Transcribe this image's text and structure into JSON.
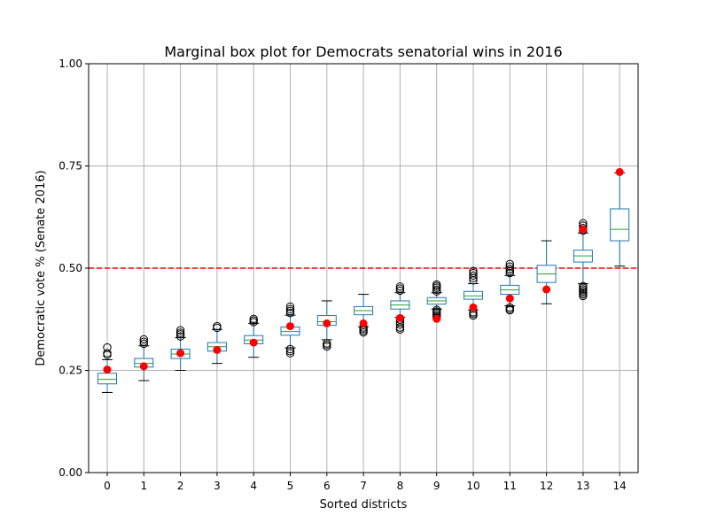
{
  "chart_data": {
    "type": "box",
    "title": "Marginal box plot for Democrats senatorial wins in 2016",
    "xlabel": "Sorted districts",
    "ylabel": "Democratic vote % (Senate 2016)",
    "ylim": [
      0,
      1
    ],
    "yticks": [
      0.0,
      0.25,
      0.5,
      0.75,
      1.0
    ],
    "ytick_labels": [
      "0.00",
      "0.25",
      "0.50",
      "0.75",
      "1.00"
    ],
    "categories": [
      "0",
      "1",
      "2",
      "3",
      "4",
      "5",
      "6",
      "7",
      "8",
      "9",
      "10",
      "11",
      "12",
      "13",
      "14"
    ],
    "grid": true,
    "reference_line": {
      "y": 0.5,
      "color": "#ff0000",
      "style": "dashed"
    },
    "colors": {
      "box": "#1f77b4",
      "median": "#2ca02c",
      "observed": "#ff0000",
      "grid": "#b0b0b0"
    },
    "boxes": [
      {
        "q1": 0.217,
        "median": 0.228,
        "q3": 0.243,
        "whisker_low": 0.196,
        "whisker_high": 0.276,
        "outliers": [
          0.288,
          0.292,
          0.306
        ]
      },
      {
        "q1": 0.258,
        "median": 0.267,
        "q3": 0.279,
        "whisker_low": 0.225,
        "whisker_high": 0.31,
        "outliers": [
          0.315,
          0.32,
          0.326
        ]
      },
      {
        "q1": 0.279,
        "median": 0.29,
        "q3": 0.302,
        "whisker_low": 0.25,
        "whisker_high": 0.33,
        "outliers": [
          0.333,
          0.338,
          0.342,
          0.348
        ]
      },
      {
        "q1": 0.297,
        "median": 0.308,
        "q3": 0.318,
        "whisker_low": 0.267,
        "whisker_high": 0.35,
        "outliers": [
          0.354,
          0.358
        ]
      },
      {
        "q1": 0.315,
        "median": 0.324,
        "q3": 0.335,
        "whisker_low": 0.282,
        "whisker_high": 0.365,
        "outliers": [
          0.368,
          0.372,
          0.376
        ]
      },
      {
        "q1": 0.336,
        "median": 0.345,
        "q3": 0.356,
        "whisker_low": 0.305,
        "whisker_high": 0.385,
        "outliers": [
          0.292,
          0.297,
          0.302,
          0.39,
          0.395,
          0.4,
          0.406
        ]
      },
      {
        "q1": 0.36,
        "median": 0.369,
        "q3": 0.384,
        "whisker_low": 0.325,
        "whisker_high": 0.42,
        "outliers": [
          0.308,
          0.312,
          0.316
        ]
      },
      {
        "q1": 0.386,
        "median": 0.396,
        "q3": 0.406,
        "whisker_low": 0.357,
        "whisker_high": 0.436,
        "outliers": [
          0.343,
          0.347,
          0.351,
          0.355
        ]
      },
      {
        "q1": 0.4,
        "median": 0.41,
        "q3": 0.42,
        "whisker_low": 0.38,
        "whisker_high": 0.44,
        "outliers": [
          0.35,
          0.355,
          0.362,
          0.368,
          0.374,
          0.445,
          0.45,
          0.455
        ]
      },
      {
        "q1": 0.412,
        "median": 0.42,
        "q3": 0.428,
        "whisker_low": 0.4,
        "whisker_high": 0.44,
        "outliers": [
          0.378,
          0.382,
          0.386,
          0.39,
          0.394,
          0.398,
          0.443,
          0.447,
          0.452,
          0.456,
          0.46
        ]
      },
      {
        "q1": 0.424,
        "median": 0.432,
        "q3": 0.443,
        "whisker_low": 0.398,
        "whisker_high": 0.462,
        "outliers": [
          0.384,
          0.388,
          0.392,
          0.47,
          0.476,
          0.482,
          0.488,
          0.493
        ]
      },
      {
        "q1": 0.436,
        "median": 0.447,
        "q3": 0.458,
        "whisker_low": 0.408,
        "whisker_high": 0.482,
        "outliers": [
          0.397,
          0.4,
          0.404,
          0.488,
          0.493,
          0.498,
          0.504,
          0.51
        ]
      },
      {
        "q1": 0.465,
        "median": 0.486,
        "q3": 0.507,
        "whisker_low": 0.413,
        "whisker_high": 0.567,
        "outliers": []
      },
      {
        "q1": 0.515,
        "median": 0.53,
        "q3": 0.544,
        "whisker_low": 0.462,
        "whisker_high": 0.586,
        "outliers": [
          0.432,
          0.436,
          0.44,
          0.444,
          0.448,
          0.452,
          0.456,
          0.592,
          0.598,
          0.604,
          0.61
        ]
      },
      {
        "q1": 0.567,
        "median": 0.595,
        "q3": 0.645,
        "whisker_low": 0.505,
        "whisker_high": 0.733,
        "outliers": []
      }
    ],
    "observed": [
      0.252,
      0.26,
      0.292,
      0.3,
      0.318,
      0.358,
      0.365,
      0.365,
      0.378,
      0.376,
      0.404,
      0.426,
      0.448,
      0.595,
      0.735
    ]
  }
}
